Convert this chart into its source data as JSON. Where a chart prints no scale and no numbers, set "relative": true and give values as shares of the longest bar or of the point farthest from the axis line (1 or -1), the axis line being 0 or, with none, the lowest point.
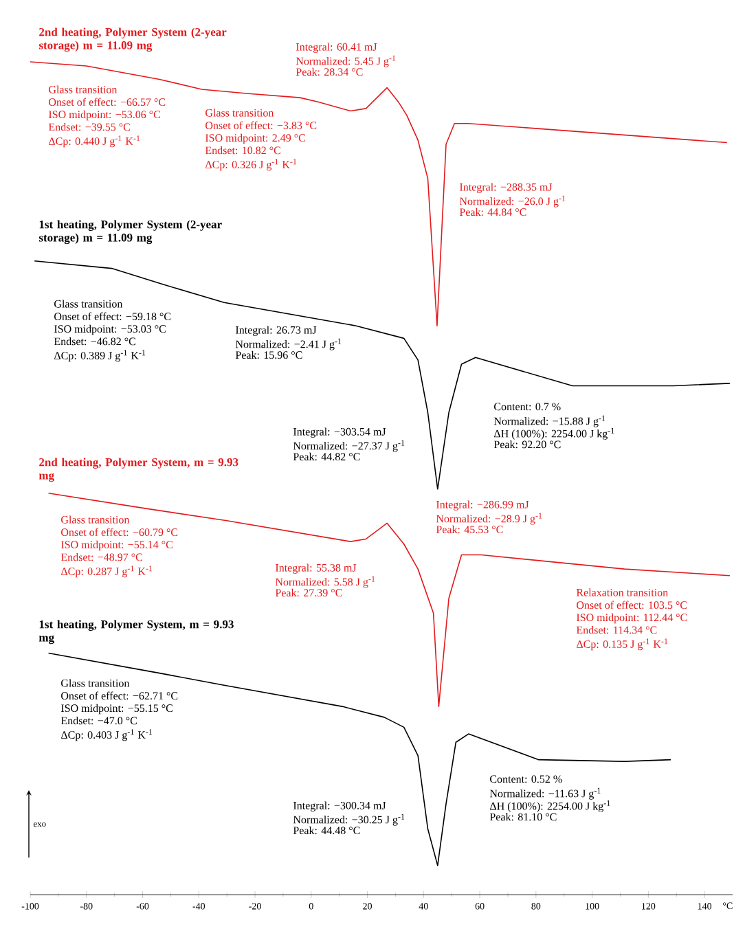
{
  "chart_data": {
    "type": "line",
    "relative": true,
    "xlabel": "°C",
    "xlim": [
      -100,
      150
    ],
    "xticks": [
      -100,
      -80,
      -60,
      -40,
      -20,
      0,
      20,
      40,
      60,
      80,
      100,
      120,
      140
    ],
    "series": [
      {
        "name": "2nd heating, Polymer System (2-year storage) m = 11.09 mg",
        "color": "#e31a1c",
        "x": [
          -100,
          -80,
          -54,
          -39,
          -23,
          -4,
          2.4,
          14,
          19.5,
          27,
          31,
          34,
          38,
          41.5,
          44.8,
          48,
          51,
          56,
          148
        ],
        "values": [
          1.0,
          0.995,
          0.979,
          0.967,
          0.962,
          0.957,
          0.952,
          0.941,
          0.944,
          0.969,
          0.952,
          0.936,
          0.906,
          0.86,
          0.683,
          0.901,
          0.926,
          0.926,
          0.903
        ]
      },
      {
        "name": "1st heating, Polymer System (2-year storage) m = 11.09 mg",
        "color": "#000000",
        "x": [
          -98.5,
          -71,
          -53,
          -31,
          -4,
          16,
          33,
          38,
          41.5,
          45,
          49,
          53.5,
          58.5,
          93,
          129,
          149
        ],
        "values": [
          0.761,
          0.752,
          0.733,
          0.711,
          0.695,
          0.683,
          0.668,
          0.642,
          0.579,
          0.487,
          0.579,
          0.637,
          0.645,
          0.611,
          0.611,
          0.614
        ]
      },
      {
        "name": "2nd heating, Polymer System, m = 9.93 mg",
        "color": "#e31a1c",
        "x": [
          -93.5,
          -59.5,
          -30,
          14,
          19.5,
          27,
          33,
          38,
          43.5,
          45.4,
          49,
          53.5,
          60.5,
          111.5,
          149
        ],
        "values": [
          0.482,
          0.464,
          0.449,
          0.424,
          0.427,
          0.446,
          0.421,
          0.391,
          0.338,
          0.226,
          0.356,
          0.408,
          0.408,
          0.391,
          0.383
        ]
      },
      {
        "name": "1st heating, Polymer System, m = 9.93 mg",
        "color": "#000000",
        "x": [
          -93.5,
          -54,
          -32,
          11,
          26,
          33,
          38,
          41.5,
          45,
          48,
          51.5,
          56,
          81,
          111.5,
          128
        ],
        "values": [
          0.29,
          0.266,
          0.252,
          0.226,
          0.213,
          0.201,
          0.167,
          0.079,
          0.035,
          0.109,
          0.183,
          0.193,
          0.162,
          0.16,
          0.162
        ]
      }
    ],
    "annotations": [
      "Glass transition",
      "Onset of effect: −66.57 °C",
      "ISO midpoint: −53.06 °C",
      "Endset: −39.55 °C",
      "ΔCp: 0.440 J g$^{-1}$ K$^{-1}$",
      "Glass transition",
      "Onset of effect: −3.83 °C",
      "ISO midpoint: 2.49 °C",
      "Endset: 10.82 °C",
      "ΔCp: 0.326 J g$^{-1}$ K$^{-1}$",
      "Integral: 60.41 mJ",
      "Normalized: 5.45 J g$^{-1}$",
      "Peak: 28.34 °C",
      "Integral: −288.35 mJ",
      "Normalized: −26.0 J g$^{-1}$",
      "Peak: 44.84 °C",
      "Glass transition",
      "Onset of effect: −59.18 °C",
      "ISO midpoint: −53.03 °C",
      "Endset: −46.82 °C",
      "ΔCp: 0.389 J g$^{-1}$ K$^{-1}$",
      "Integral: 26.73 mJ",
      "Normalized: −2.41 J g$^{-1}$",
      "Peak: 15.96 °C",
      "Integral: −303.54 mJ",
      "Normalized: −27.37 J g$^{-1}$",
      "Peak: 44.82 °C",
      "Content: 0.7 %",
      "Normalized: −15.88 J g$^{-1}$",
      "ΔH (100%): 2254.00 J kg$^{-1}$",
      "Peak: 92.20 °C",
      "Glass transition",
      "Onset of effect: −60.79 °C",
      "ISO midpoint: −55.14 °C",
      "Endset: −48.97 °C",
      "ΔCp: 0.287 J g$^{-1}$ K$^{-1}$",
      "Integral: 55.38 mJ",
      "Normalized: 5.58 J g$^{-1}$",
      "Peak: 27.39 °C",
      "Integral: −286.99 mJ",
      "Normalized: −28.9 J g$^{-1}$",
      "Peak: 45.53 °C",
      "Relaxation transition",
      "Onset of effect: 103.5 °C",
      "ISO midpoint: 112.44 °C",
      "Endset: 114.34 °C",
      "ΔCp: 0.135 J g$^{-1}$ K$^{-1}$",
      "Glass transition",
      "Onset of effect: −62.71 °C",
      "ISO midpoint: −55.15 °C",
      "Endset: −47.0 °C",
      "ΔCp: 0.403 J g$^{-1}$ K$^{-1}$",
      "Integral: −300.34 mJ",
      "Normalized: −30.25 J g$^{-1}$",
      "Peak: 44.48 °C",
      "Content: 0.52 %",
      "Normalized: −11.63 J g$^{-1}$",
      "ΔH (100%): 2254.00 J kg$^{-1}$",
      "Peak: 81.10 °C",
      "exo"
    ]
  }
}
